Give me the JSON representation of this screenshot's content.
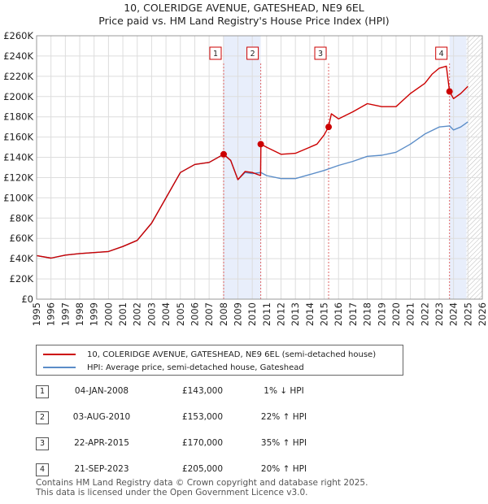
{
  "title_line1": "10, COLERIDGE AVENUE, GATESHEAD, NE9 6EL",
  "title_line2": "Price paid vs. HM Land Registry's House Price Index (HPI)",
  "chart_data": {
    "type": "line",
    "ylim": [
      0,
      260000
    ],
    "xlim": [
      1995,
      2026
    ],
    "yticks": [
      0,
      20000,
      40000,
      60000,
      80000,
      100000,
      120000,
      140000,
      160000,
      180000,
      200000,
      220000,
      240000,
      260000
    ],
    "ytick_labels": [
      "£0",
      "£20K",
      "£40K",
      "£60K",
      "£80K",
      "£100K",
      "£120K",
      "£140K",
      "£160K",
      "£180K",
      "£200K",
      "£220K",
      "£240K",
      "£260K"
    ],
    "xticks": [
      1995,
      1996,
      1997,
      1998,
      1999,
      2000,
      2001,
      2002,
      2003,
      2004,
      2005,
      2006,
      2007,
      2008,
      2009,
      2010,
      2011,
      2012,
      2013,
      2014,
      2015,
      2016,
      2017,
      2018,
      2019,
      2020,
      2021,
      2022,
      2023,
      2024,
      2025,
      2026
    ],
    "grid": true,
    "series": [
      {
        "name": "10, COLERIDGE AVENUE, GATESHEAD, NE9 6EL (semi-detached house)",
        "color": "#cc0000",
        "x": [
          1995.0,
          1996.0,
          1997.0,
          1998.0,
          1999.0,
          2000.0,
          2001.0,
          2002.0,
          2003.0,
          2004.0,
          2005.0,
          2006.0,
          2007.0,
          2008.01,
          2008.5,
          2009.0,
          2009.5,
          2010.0,
          2010.58,
          2010.6,
          2011.0,
          2012.0,
          2013.0,
          2014.0,
          2014.5,
          2015.0,
          2015.3,
          2015.5,
          2016.0,
          2017.0,
          2018.0,
          2019.0,
          2020.0,
          2021.0,
          2022.0,
          2022.5,
          2023.0,
          2023.5,
          2023.72,
          2024.0,
          2024.5,
          2025.0
        ],
        "y": [
          43000,
          40500,
          43500,
          45000,
          46000,
          47000,
          52000,
          58000,
          75000,
          100000,
          125000,
          133000,
          135000,
          143000,
          137000,
          118000,
          126000,
          125000,
          122000,
          153000,
          150000,
          143000,
          144000,
          150000,
          153000,
          162000,
          170000,
          183000,
          178000,
          185000,
          193000,
          190000,
          190000,
          203000,
          213000,
          222000,
          228000,
          230000,
          205000,
          198000,
          203000,
          210000
        ]
      },
      {
        "name": "HPI: Average price, semi-detached house, Gateshead",
        "color": "#5b8dc8",
        "x": [
          1995.0,
          1996.0,
          1997.0,
          1998.0,
          1999.0,
          2000.0,
          2001.0,
          2002.0,
          2003.0,
          2004.0,
          2005.0,
          2006.0,
          2007.0,
          2008.0,
          2008.5,
          2009.0,
          2009.5,
          2010.0,
          2010.6,
          2011.0,
          2012.0,
          2013.0,
          2014.0,
          2015.0,
          2016.0,
          2017.0,
          2018.0,
          2019.0,
          2020.0,
          2021.0,
          2022.0,
          2023.0,
          2023.72,
          2024.0,
          2024.5,
          2025.0
        ],
        "y": [
          43000,
          40500,
          43500,
          45000,
          46000,
          47000,
          52000,
          58000,
          75000,
          100000,
          125000,
          133000,
          135000,
          143000,
          137000,
          118000,
          125000,
          124000,
          125000,
          122000,
          119000,
          119000,
          123000,
          127000,
          132000,
          136000,
          141000,
          142000,
          145000,
          153000,
          163000,
          170000,
          171000,
          167000,
          170000,
          175000
        ]
      }
    ],
    "sales": [
      {
        "label": "1",
        "x": 2008.01,
        "y": 143000
      },
      {
        "label": "2",
        "x": 2010.59,
        "y": 153000
      },
      {
        "label": "3",
        "x": 2015.31,
        "y": 170000
      },
      {
        "label": "4",
        "x": 2023.72,
        "y": 205000
      }
    ],
    "shaded_ranges": [
      [
        2008.01,
        2010.59
      ],
      [
        2023.72,
        2024.9
      ]
    ],
    "hatched_range": [
      2024.9,
      2026.0
    ]
  },
  "legend": {
    "property": "10, COLERIDGE AVENUE, GATESHEAD, NE9 6EL (semi-detached house)",
    "hpi": "HPI: Average price, semi-detached house, Gateshead",
    "property_color": "#cc0000",
    "hpi_color": "#5b8dc8"
  },
  "sales_table": [
    {
      "num": "1",
      "date": "04-JAN-2008",
      "price": "£143,000",
      "hpi": "1% ↓ HPI"
    },
    {
      "num": "2",
      "date": "03-AUG-2010",
      "price": "£153,000",
      "hpi": "22% ↑ HPI"
    },
    {
      "num": "3",
      "date": "22-APR-2015",
      "price": "£170,000",
      "hpi": "35% ↑ HPI"
    },
    {
      "num": "4",
      "date": "21-SEP-2023",
      "price": "£205,000",
      "hpi": "20% ↑ HPI"
    }
  ],
  "footer_line1": "Contains HM Land Registry data © Crown copyright and database right 2025.",
  "footer_line2": "This data is licensed under the Open Government Licence v3.0."
}
